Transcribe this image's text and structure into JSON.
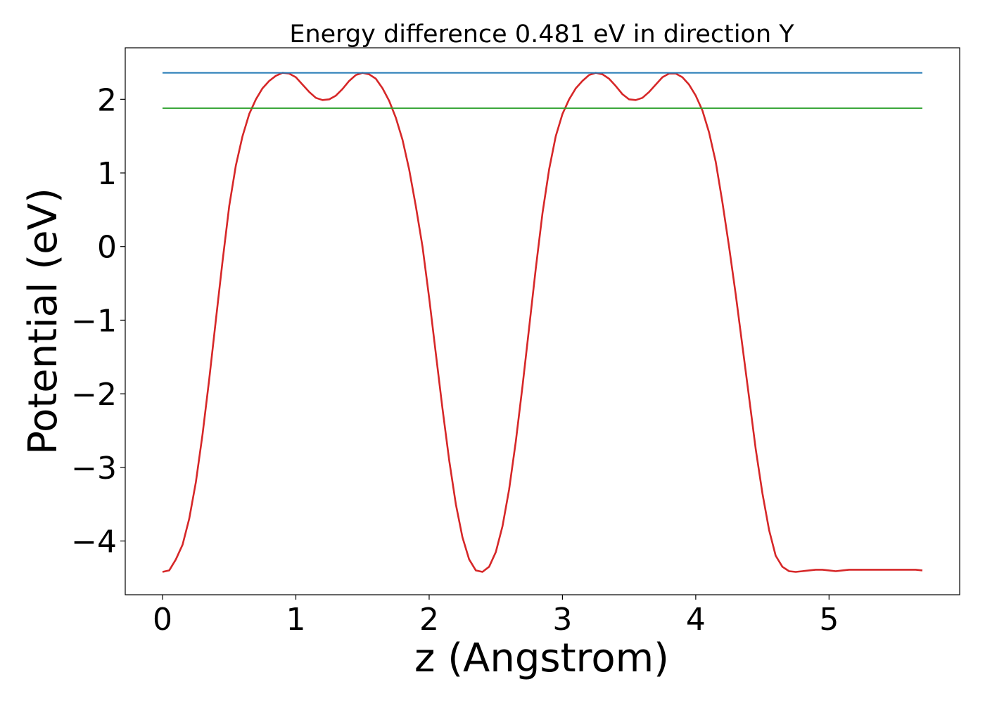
{
  "chart_data": {
    "type": "line",
    "title": "Energy difference 0.481 eV in direction Y",
    "xlabel": "z (Angstrom)",
    "ylabel": "Potential (eV)",
    "xlim": [
      -0.28,
      5.98
    ],
    "ylim": [
      -4.73,
      2.7
    ],
    "xticks": [
      0,
      1,
      2,
      3,
      4,
      5
    ],
    "yticks": [
      -4,
      -3,
      -2,
      -1,
      0,
      1,
      2
    ],
    "xtick_labels": [
      "0",
      "1",
      "2",
      "3",
      "4",
      "5"
    ],
    "ytick_labels": [
      "−4",
      "−3",
      "−2",
      "−1",
      "0",
      "1",
      "2"
    ],
    "grid": false,
    "series": [
      {
        "color": "#d62728",
        "x": [
          0.0,
          0.05,
          0.1,
          0.15,
          0.2,
          0.25,
          0.3,
          0.35,
          0.4,
          0.45,
          0.5,
          0.55,
          0.6,
          0.65,
          0.7,
          0.75,
          0.8,
          0.85,
          0.9,
          0.95,
          1.0,
          1.05,
          1.1,
          1.15,
          1.2,
          1.25,
          1.3,
          1.35,
          1.4,
          1.45,
          1.5,
          1.55,
          1.6,
          1.65,
          1.7,
          1.75,
          1.8,
          1.85,
          1.9,
          1.95,
          2.0,
          2.05,
          2.1,
          2.15,
          2.2,
          2.25,
          2.3,
          2.35,
          2.4,
          2.45,
          2.5,
          2.55,
          2.6,
          2.65,
          2.7,
          2.75,
          2.8,
          2.85,
          2.9,
          2.95,
          3.0,
          3.05,
          3.1,
          3.15,
          3.2,
          3.25,
          3.3,
          3.35,
          3.4,
          3.45,
          3.5,
          3.55,
          3.6,
          3.65,
          3.7,
          3.75,
          3.8,
          3.85,
          3.9,
          3.95,
          4.0,
          4.05,
          4.1,
          4.15,
          4.2,
          4.25,
          4.3,
          4.35,
          4.4,
          4.45,
          4.5,
          4.55,
          4.6,
          4.65,
          4.7,
          4.75,
          4.8,
          4.85,
          4.9,
          4.95,
          5.0,
          5.05,
          5.1,
          5.15,
          5.2,
          5.25,
          5.3,
          5.35,
          5.4,
          5.45,
          5.5,
          5.55,
          5.6,
          5.65,
          5.7
        ],
        "y": [
          -4.42,
          -4.4,
          -4.25,
          -4.05,
          -3.7,
          -3.2,
          -2.55,
          -1.8,
          -1.0,
          -0.2,
          0.55,
          1.1,
          1.5,
          1.8,
          2.0,
          2.15,
          2.25,
          2.32,
          2.36,
          2.35,
          2.3,
          2.2,
          2.1,
          2.02,
          1.99,
          2.0,
          2.05,
          2.14,
          2.25,
          2.33,
          2.36,
          2.34,
          2.28,
          2.15,
          1.98,
          1.75,
          1.45,
          1.05,
          0.55,
          0.0,
          -0.7,
          -1.45,
          -2.2,
          -2.9,
          -3.5,
          -3.95,
          -4.25,
          -4.4,
          -4.42,
          -4.35,
          -4.15,
          -3.8,
          -3.3,
          -2.65,
          -1.9,
          -1.1,
          -0.3,
          0.45,
          1.05,
          1.5,
          1.8,
          2.0,
          2.15,
          2.25,
          2.33,
          2.36,
          2.34,
          2.28,
          2.18,
          2.07,
          2.0,
          1.99,
          2.02,
          2.1,
          2.2,
          2.3,
          2.35,
          2.35,
          2.3,
          2.2,
          2.05,
          1.85,
          1.55,
          1.15,
          0.6,
          0.0,
          -0.65,
          -1.35,
          -2.05,
          -2.75,
          -3.35,
          -3.85,
          -4.2,
          -4.35,
          -4.41,
          -4.42,
          -4.41,
          -4.4,
          -4.39,
          -4.39,
          -4.4,
          -4.41,
          -4.4,
          -4.39,
          -4.39,
          -4.39,
          -4.39,
          -4.39,
          -4.39,
          -4.39,
          -4.39,
          -4.39,
          -4.39,
          -4.39,
          -4.4
        ]
      },
      {
        "color": "#1f77b4",
        "x": [
          0.0,
          5.7
        ],
        "y": [
          2.36,
          2.36
        ]
      },
      {
        "color": "#2ca02c",
        "x": [
          0.0,
          5.7
        ],
        "y": [
          1.88,
          1.88
        ]
      }
    ]
  }
}
